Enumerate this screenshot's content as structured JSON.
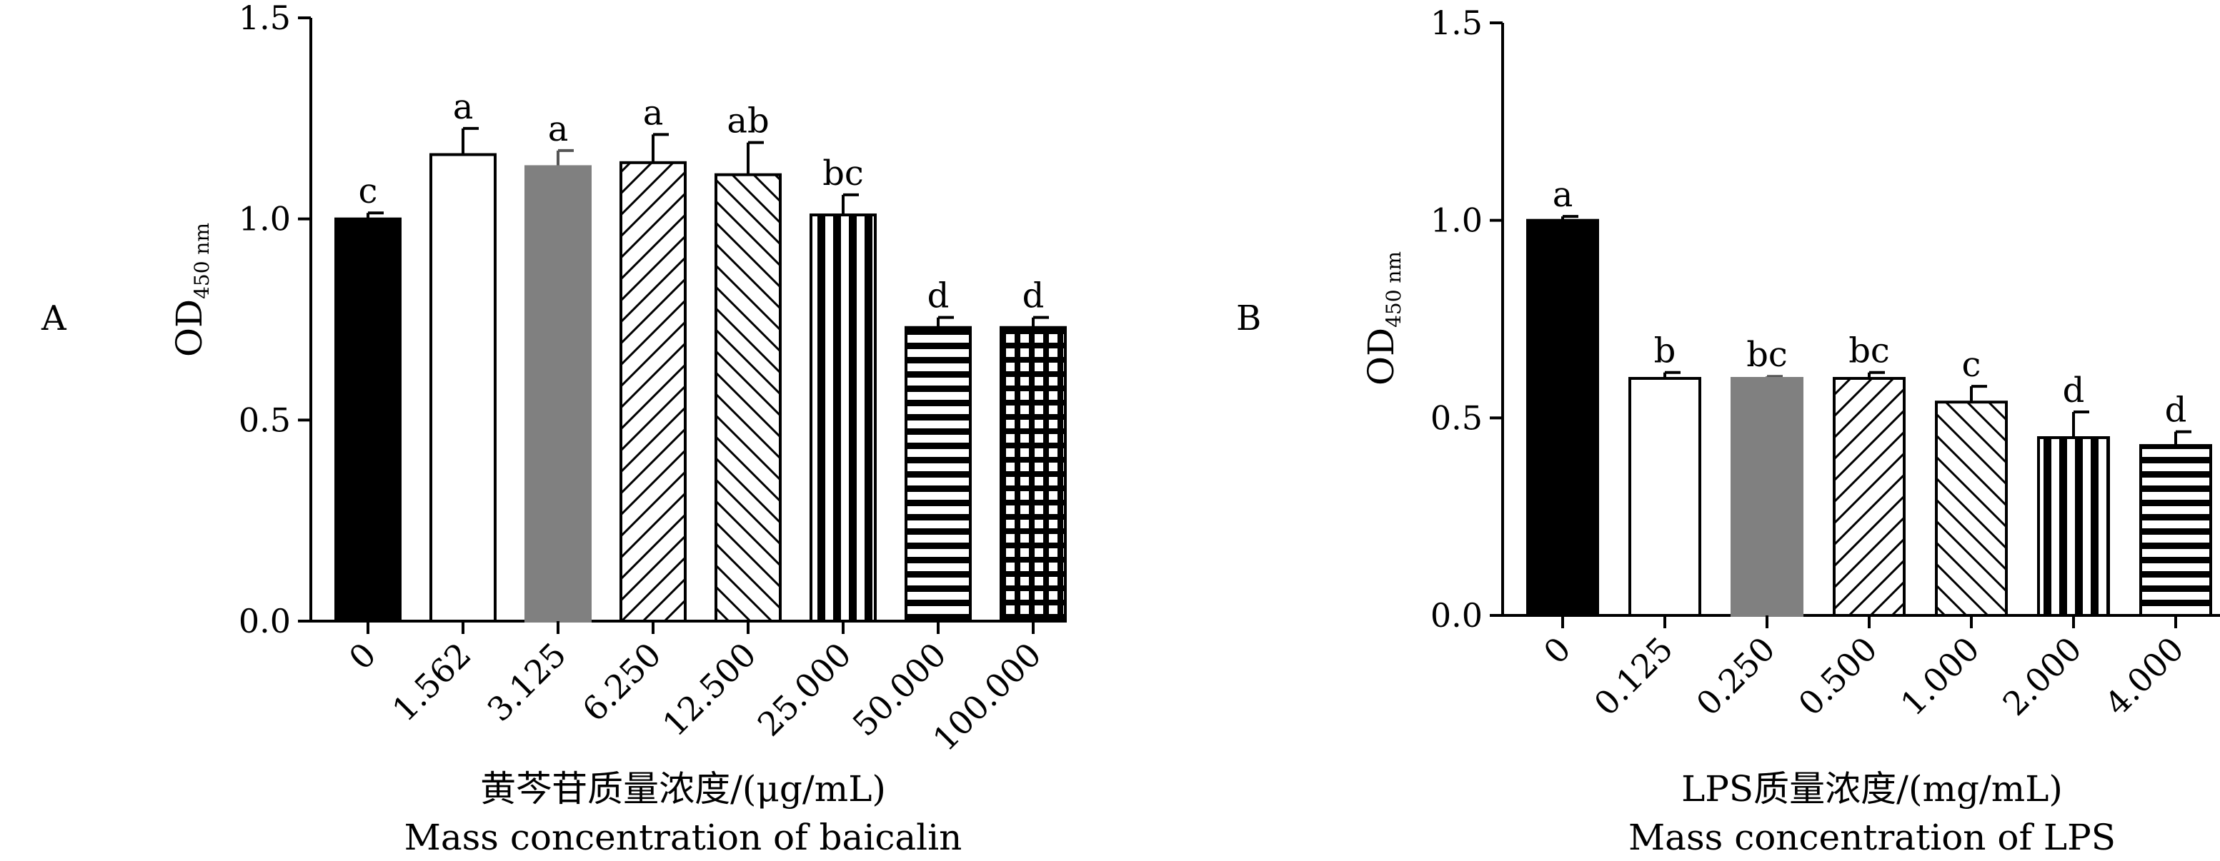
{
  "panels": {
    "A": {
      "label": "A"
    },
    "B": {
      "label": "B"
    }
  },
  "chart_data": [
    {
      "type": "bar",
      "panel": "A",
      "ylabel_main": "OD",
      "ylabel_sub": "450 nm",
      "xlabel_cn": "黄芩苷质量浓度/(μg/mL)",
      "xlabel_en": "Mass concentration of baicalin",
      "ylim": [
        0,
        1.5
      ],
      "yticks": [
        "0.0",
        "0.5",
        "1.0",
        "1.5"
      ],
      "categories": [
        "0",
        "1.562",
        "3.125",
        "6.250",
        "12.500",
        "25.000",
        "50.000",
        "100.000"
      ],
      "values": [
        1.0,
        1.16,
        1.13,
        1.14,
        1.11,
        1.01,
        0.73,
        0.73
      ],
      "errors": [
        0.015,
        0.065,
        0.04,
        0.07,
        0.08,
        0.05,
        0.025,
        0.025
      ],
      "letters": [
        "c",
        "a",
        "a",
        "a",
        "ab",
        "bc",
        "d",
        "d"
      ],
      "patterns": [
        "black",
        "white",
        "gray",
        "diag-fwd",
        "diag-back",
        "vert",
        "horiz",
        "grid"
      ]
    },
    {
      "type": "bar",
      "panel": "B",
      "ylabel_main": "OD",
      "ylabel_sub": "450 nm",
      "xlabel_cn": "LPS质量浓度/(mg/mL)",
      "xlabel_en": "Mass concentration of LPS",
      "ylim": [
        0,
        1.5
      ],
      "yticks": [
        "0.0",
        "0.5",
        "1.0",
        "1.5"
      ],
      "categories": [
        "0",
        "0.125",
        "0.250",
        "0.500",
        "1.000",
        "2.000",
        "4.000"
      ],
      "values": [
        1.0,
        0.6,
        0.6,
        0.6,
        0.54,
        0.45,
        0.43
      ],
      "errors": [
        0.01,
        0.015,
        0.005,
        0.015,
        0.04,
        0.065,
        0.035
      ],
      "letters": [
        "a",
        "b",
        "bc",
        "bc",
        "c",
        "d",
        "d"
      ],
      "patterns": [
        "black",
        "white",
        "gray",
        "diag-fwd",
        "diag-back",
        "vert",
        "horiz"
      ]
    }
  ]
}
